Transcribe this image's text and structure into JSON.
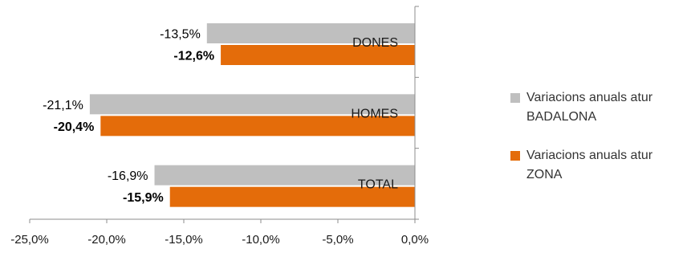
{
  "chart_data": {
    "type": "bar",
    "orientation": "horizontal",
    "categories": [
      "DONES",
      "HOMES",
      "TOTAL"
    ],
    "series": [
      {
        "name": "Variacions anuals atur BADALONA",
        "color": "#bfbfbf",
        "values": [
          -13.5,
          -21.1,
          -16.9
        ],
        "labels": [
          "-13,5%",
          "-21,1%",
          "-16,9%"
        ],
        "label_weight": "normal"
      },
      {
        "name": "Variacions anuals atur ZONA",
        "color": "#e46c0a",
        "values": [
          -12.6,
          -20.4,
          -15.9
        ],
        "labels": [
          "-12,6%",
          "-20,4%",
          "-15,9%"
        ],
        "label_weight": "bold"
      }
    ],
    "xlim": [
      -25,
      0
    ],
    "xticks": [
      -25,
      -20,
      -15,
      -10,
      -5,
      0
    ],
    "xtick_labels": [
      "-25,0%",
      "-20,0%",
      "-15,0%",
      "-10,0%",
      "-5,0%",
      "0,0%"
    ],
    "grid": false,
    "legend_position": "right"
  },
  "legend": {
    "items": [
      {
        "line1": "Variacions anuals atur",
        "line2": "BADALONA",
        "color": "#bfbfbf"
      },
      {
        "line1": "Variacions anuals atur",
        "line2": "ZONA",
        "color": "#e46c0a"
      }
    ]
  }
}
